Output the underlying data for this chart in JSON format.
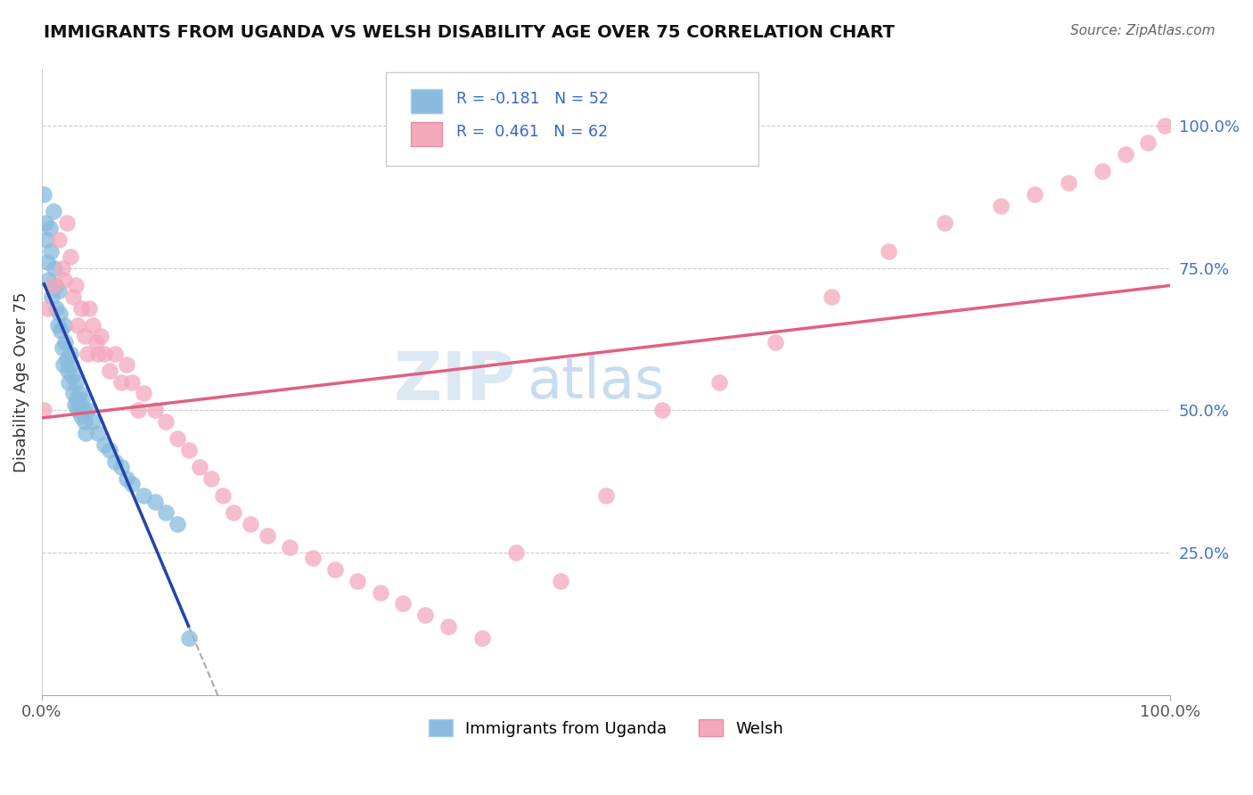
{
  "title": "IMMIGRANTS FROM UGANDA VS WELSH DISABILITY AGE OVER 75 CORRELATION CHART",
  "source": "Source: ZipAtlas.com",
  "ylabel": "Disability Age Over 75",
  "legend_label1": "Immigrants from Uganda",
  "legend_label2": "Welsh",
  "r1": "-0.181",
  "n1": "52",
  "r2": "0.461",
  "n2": "62",
  "color_blue": "#88BBDD",
  "color_pink": "#F4A8BC",
  "color_blue_line": "#2244AA",
  "color_pink_line": "#E06080",
  "color_dashed": "#AAAAAA",
  "blue_x": [
    0.002,
    0.003,
    0.004,
    0.005,
    0.006,
    0.007,
    0.008,
    0.009,
    0.01,
    0.011,
    0.012,
    0.013,
    0.014,
    0.015,
    0.016,
    0.017,
    0.018,
    0.019,
    0.02,
    0.021,
    0.022,
    0.023,
    0.024,
    0.025,
    0.026,
    0.027,
    0.028,
    0.029,
    0.03,
    0.031,
    0.032,
    0.033,
    0.034,
    0.035,
    0.036,
    0.037,
    0.038,
    0.039,
    0.04,
    0.045,
    0.05,
    0.055,
    0.06,
    0.065,
    0.07,
    0.075,
    0.08,
    0.09,
    0.1,
    0.11,
    0.12,
    0.13
  ],
  "blue_y": [
    0.88,
    0.83,
    0.8,
    0.76,
    0.73,
    0.82,
    0.78,
    0.7,
    0.85,
    0.75,
    0.72,
    0.68,
    0.65,
    0.71,
    0.67,
    0.64,
    0.61,
    0.58,
    0.65,
    0.62,
    0.59,
    0.57,
    0.55,
    0.6,
    0.58,
    0.56,
    0.53,
    0.51,
    0.55,
    0.52,
    0.5,
    0.53,
    0.51,
    0.49,
    0.52,
    0.5,
    0.48,
    0.46,
    0.5,
    0.48,
    0.46,
    0.44,
    0.43,
    0.41,
    0.4,
    0.38,
    0.37,
    0.35,
    0.34,
    0.32,
    0.3,
    0.1
  ],
  "pink_x": [
    0.002,
    0.005,
    0.01,
    0.015,
    0.018,
    0.02,
    0.022,
    0.025,
    0.028,
    0.03,
    0.032,
    0.035,
    0.038,
    0.04,
    0.042,
    0.045,
    0.048,
    0.05,
    0.052,
    0.055,
    0.06,
    0.065,
    0.07,
    0.075,
    0.08,
    0.085,
    0.09,
    0.1,
    0.11,
    0.12,
    0.13,
    0.14,
    0.15,
    0.16,
    0.17,
    0.185,
    0.2,
    0.22,
    0.24,
    0.26,
    0.28,
    0.3,
    0.32,
    0.34,
    0.36,
    0.39,
    0.42,
    0.46,
    0.5,
    0.55,
    0.6,
    0.65,
    0.7,
    0.75,
    0.8,
    0.85,
    0.88,
    0.91,
    0.94,
    0.96,
    0.98,
    0.995
  ],
  "pink_y": [
    0.5,
    0.68,
    0.72,
    0.8,
    0.75,
    0.73,
    0.83,
    0.77,
    0.7,
    0.72,
    0.65,
    0.68,
    0.63,
    0.6,
    0.68,
    0.65,
    0.62,
    0.6,
    0.63,
    0.6,
    0.57,
    0.6,
    0.55,
    0.58,
    0.55,
    0.5,
    0.53,
    0.5,
    0.48,
    0.45,
    0.43,
    0.4,
    0.38,
    0.35,
    0.32,
    0.3,
    0.28,
    0.26,
    0.24,
    0.22,
    0.2,
    0.18,
    0.16,
    0.14,
    0.12,
    0.1,
    0.25,
    0.2,
    0.35,
    0.5,
    0.55,
    0.62,
    0.7,
    0.78,
    0.83,
    0.86,
    0.88,
    0.9,
    0.92,
    0.95,
    0.97,
    1.0
  ]
}
